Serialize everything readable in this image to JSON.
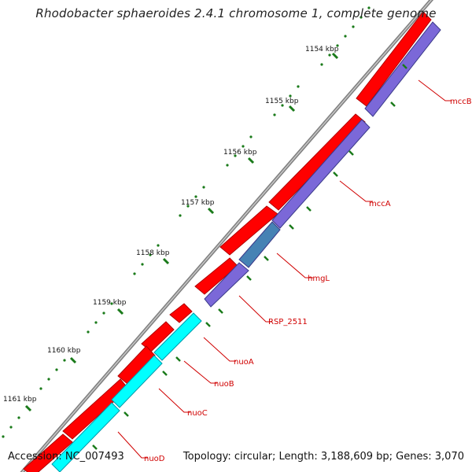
{
  "header": {
    "title": "Rhodobacter sphaeroides 2.4.1 chromosome 1, complete genome"
  },
  "footer": {
    "accession": "Accession: NC_007493",
    "summary": "Topology: circular; Length: 3,188,609 bp; Genes: 3,070"
  },
  "colors": {
    "forward_gene": "#ff0000",
    "reverse_gene_purple": "#7b68d8",
    "reverse_gene_steel": "#4682b4",
    "reverse_gene_cyan": "#00ffff",
    "backbone": "#8c8c8c",
    "tick": "#1a7a1a",
    "gene_label": "#d00000"
  },
  "kbp_labels": [
    "1154 kbp",
    "1155 kbp",
    "1156 kbp",
    "1157 kbp",
    "1158 kbp",
    "1159 kbp",
    "1160 kbp",
    "1161 kbp"
  ],
  "gene_labels": [
    "mccB",
    "mccA",
    "hmgL",
    "RSP_2511",
    "nuoA",
    "nuoB",
    "nuoC",
    "nuoD"
  ]
}
